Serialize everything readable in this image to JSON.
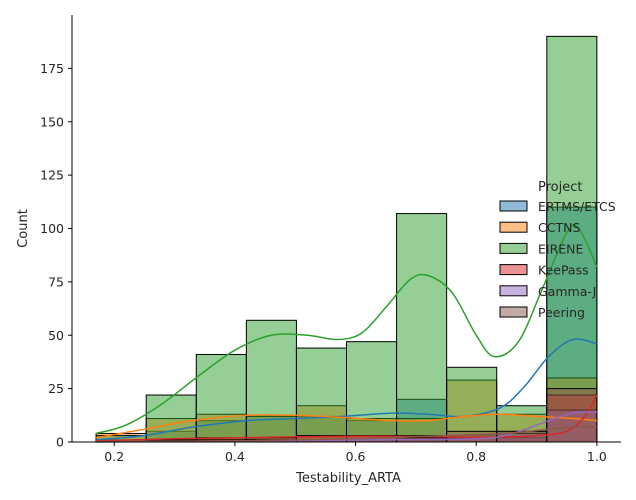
{
  "chart_data": {
    "type": "bar",
    "subtype": "stacked-histogram-with-kde",
    "xlabel": "Testability_ARTA",
    "ylabel": "Count",
    "xlim": [
      0.13,
      1.04
    ],
    "ylim": [
      0,
      200
    ],
    "xticks": [
      "0.2",
      "0.4",
      "0.6",
      "0.8",
      "1.0"
    ],
    "yticks": [
      "0",
      "25",
      "50",
      "75",
      "100",
      "125",
      "150",
      "175"
    ],
    "grid": false,
    "bins": [
      [
        0.17,
        0.253
      ],
      [
        0.253,
        0.336
      ],
      [
        0.336,
        0.419
      ],
      [
        0.419,
        0.502
      ],
      [
        0.502,
        0.585
      ],
      [
        0.585,
        0.668
      ],
      [
        0.668,
        0.751
      ],
      [
        0.751,
        0.834
      ],
      [
        0.834,
        0.917
      ],
      [
        0.917,
        1.0
      ]
    ],
    "legend": {
      "title": "Project",
      "placement": "center-right",
      "entries": [
        "ERTMS/ETCS",
        "CCTNS",
        "EIRENE",
        "KeePass",
        "Gamma-J",
        "Peering"
      ]
    },
    "series": [
      {
        "name": "ERTMS/ETCS",
        "color": "#1f77b4",
        "counts": [
          1,
          5,
          10,
          12,
          12,
          10,
          20,
          3,
          5,
          110
        ],
        "kde": [
          [
            0.17,
            1
          ],
          [
            0.25,
            3
          ],
          [
            0.33,
            7
          ],
          [
            0.42,
            10
          ],
          [
            0.5,
            11
          ],
          [
            0.58,
            12
          ],
          [
            0.66,
            13.5
          ],
          [
            0.72,
            13
          ],
          [
            0.78,
            12
          ],
          [
            0.84,
            16
          ],
          [
            0.88,
            26
          ],
          [
            0.92,
            40
          ],
          [
            0.96,
            48
          ],
          [
            1.0,
            46
          ]
        ]
      },
      {
        "name": "CCTNS",
        "color": "#ff7f0e",
        "counts": [
          4,
          11,
          13,
          12,
          17,
          11,
          11,
          29,
          13,
          30
        ],
        "kde": [
          [
            0.17,
            2
          ],
          [
            0.25,
            6
          ],
          [
            0.33,
            10
          ],
          [
            0.42,
            12.5
          ],
          [
            0.5,
            12.5
          ],
          [
            0.58,
            11.5
          ],
          [
            0.66,
            10
          ],
          [
            0.72,
            10
          ],
          [
            0.78,
            12
          ],
          [
            0.84,
            13
          ],
          [
            0.9,
            12
          ],
          [
            0.96,
            11
          ],
          [
            1.0,
            10
          ]
        ]
      },
      {
        "name": "EIRENE",
        "color": "#2ca02c",
        "counts": [
          3,
          22,
          41,
          57,
          44,
          47,
          107,
          35,
          17,
          190
        ],
        "kde": [
          [
            0.17,
            4
          ],
          [
            0.22,
            8
          ],
          [
            0.28,
            18
          ],
          [
            0.34,
            31
          ],
          [
            0.4,
            43
          ],
          [
            0.46,
            50
          ],
          [
            0.52,
            50
          ],
          [
            0.57,
            48
          ],
          [
            0.61,
            51
          ],
          [
            0.65,
            63
          ],
          [
            0.69,
            76
          ],
          [
            0.72,
            78
          ],
          [
            0.76,
            70
          ],
          [
            0.8,
            50
          ],
          [
            0.83,
            40
          ],
          [
            0.87,
            47
          ],
          [
            0.91,
            72
          ],
          [
            0.95,
            98
          ],
          [
            0.97,
            100
          ],
          [
            1.0,
            82
          ]
        ]
      },
      {
        "name": "KeePass",
        "color": "#d62728",
        "counts": [
          0,
          1,
          2,
          2,
          3,
          3,
          3,
          2,
          2,
          22
        ],
        "kde": [
          [
            0.17,
            0.5
          ],
          [
            0.3,
            1.5
          ],
          [
            0.45,
            2.2
          ],
          [
            0.6,
            2.7
          ],
          [
            0.72,
            2.5
          ],
          [
            0.82,
            2.2
          ],
          [
            0.9,
            3
          ],
          [
            0.95,
            5
          ],
          [
            0.98,
            12
          ],
          [
            1.0,
            22
          ]
        ]
      },
      {
        "name": "Gamma-J",
        "color": "#9467bd",
        "counts": [
          0,
          0,
          0,
          1,
          1,
          1,
          1,
          2,
          4,
          15
        ],
        "kde": [
          [
            0.17,
            0
          ],
          [
            0.4,
            0.5
          ],
          [
            0.6,
            1
          ],
          [
            0.8,
            1.5
          ],
          [
            0.86,
            4
          ],
          [
            0.92,
            10
          ],
          [
            0.96,
            13.5
          ],
          [
            1.0,
            14
          ]
        ]
      },
      {
        "name": "Peering",
        "color": "#8c564b",
        "counts": [
          0,
          1,
          1,
          1,
          1,
          1,
          2,
          5,
          5,
          25
        ],
        "kde": [
          [
            0.17,
            0.2
          ],
          [
            0.4,
            0.5
          ],
          [
            0.6,
            1.5
          ],
          [
            0.75,
            3
          ],
          [
            0.85,
            4
          ],
          [
            0.92,
            6
          ],
          [
            0.96,
            7
          ],
          [
            1.0,
            7
          ]
        ]
      }
    ]
  }
}
